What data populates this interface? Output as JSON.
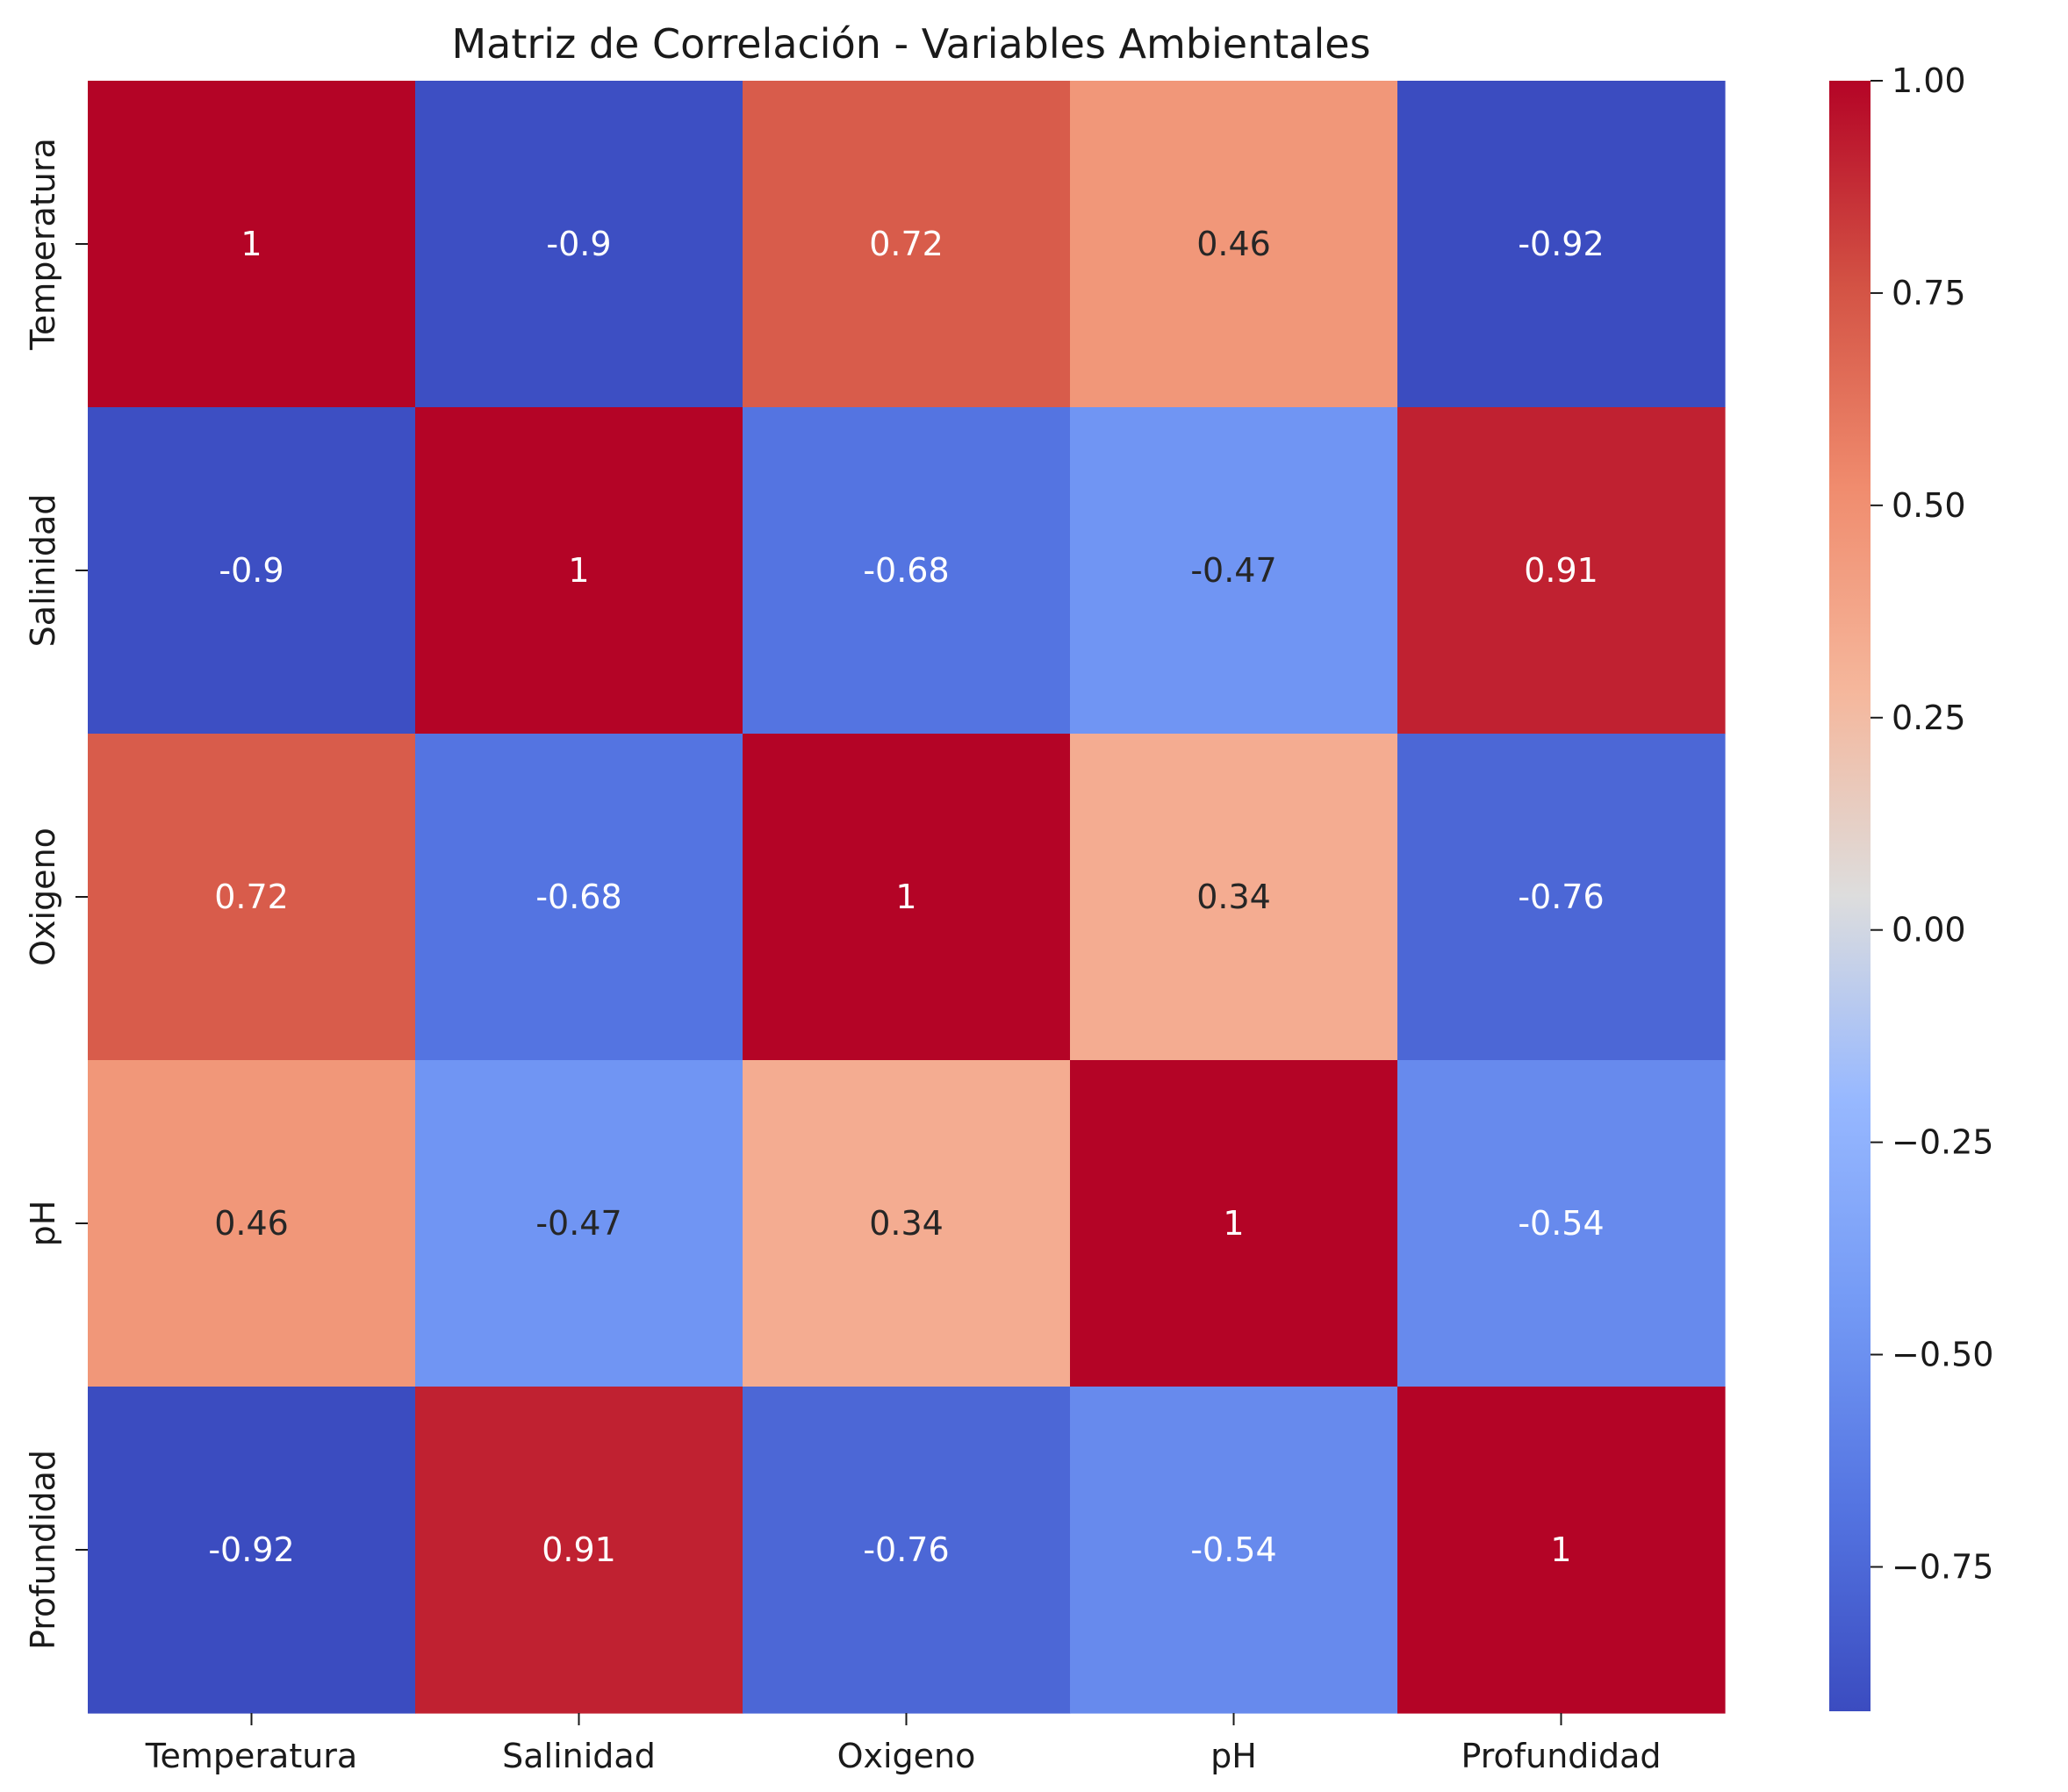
{
  "chart_data": {
    "type": "heatmap",
    "title": "Matriz de Correlación - Variables Ambientales",
    "xlabel": "",
    "ylabel": "",
    "rows": [
      "Temperatura",
      "Salinidad",
      "Oxigeno",
      "pH",
      "Profundidad"
    ],
    "cols": [
      "Temperatura",
      "Salinidad",
      "Oxigeno",
      "pH",
      "Profundidad"
    ],
    "values": [
      [
        1,
        -0.9,
        0.72,
        0.46,
        -0.92
      ],
      [
        -0.9,
        1,
        -0.68,
        -0.47,
        0.91
      ],
      [
        0.72,
        -0.68,
        1,
        0.34,
        -0.76
      ],
      [
        0.46,
        -0.47,
        0.34,
        1,
        -0.54
      ],
      [
        -0.92,
        0.91,
        -0.76,
        -0.54,
        1
      ]
    ],
    "cell_labels": [
      [
        "1",
        "-0.9",
        "0.72",
        "0.46",
        "-0.92"
      ],
      [
        "-0.9",
        "1",
        "-0.68",
        "-0.47",
        "0.91"
      ],
      [
        "0.72",
        "-0.68",
        "1",
        "0.34",
        "-0.76"
      ],
      [
        "0.46",
        "-0.47",
        "0.34",
        "1",
        "-0.54"
      ],
      [
        "-0.92",
        "0.91",
        "-0.76",
        "-0.54",
        "1"
      ]
    ],
    "colormap": "coolwarm",
    "colorbar": {
      "range": [
        -0.92,
        1
      ],
      "ticks": [
        1.0,
        0.75,
        0.5,
        0.25,
        0.0,
        -0.25,
        -0.5,
        -0.75
      ],
      "tick_labels": [
        "1.00",
        "0.75",
        "0.50",
        "0.25",
        "0.00",
        "−0.25",
        "−0.50",
        "−0.75"
      ]
    }
  }
}
